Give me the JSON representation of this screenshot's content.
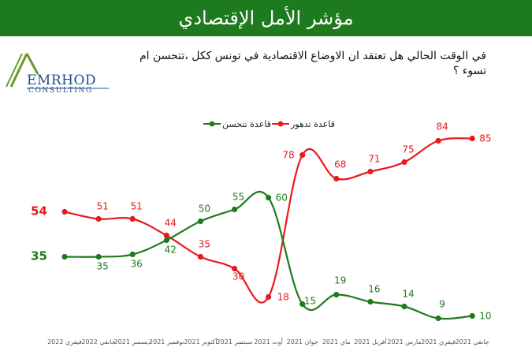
{
  "header": {
    "title": "مؤشر الأمل الإقتصادي",
    "question": "في الوقت الحالي هل تعتقد ان الاوضاع الاقتصادية في تونس ككل ،تتحسن ام تسوء ؟"
  },
  "logo": {
    "name": "EMRHOD",
    "sub": "CONSULTING"
  },
  "colors": {
    "brand_green": "#1e7a1e",
    "improve": "#1e7a1e",
    "worsen": "#e8191e"
  },
  "chart_data": {
    "type": "line",
    "categories": [
      "فيفري 2022",
      "جانفي 2022",
      "ديسمبر 2021",
      "نوفمبر 2021",
      "أكتوبر 2021",
      "سبتمبر 2021",
      "أوت 2021",
      "جوان 2021",
      "ماي 2021",
      "أفريل 2021",
      "مارس 2021",
      "فيفري 2021",
      "جانفي 2021"
    ],
    "series": [
      {
        "name": "قاعدة تدهور",
        "color": "#e8191e",
        "values": [
          54,
          51,
          51,
          44,
          35,
          30,
          18,
          78,
          68,
          71,
          75,
          84,
          85
        ]
      },
      {
        "name": "قاعدة تتحسن",
        "color": "#1e7a1e",
        "values": [
          35,
          35,
          36,
          42,
          50,
          55,
          60,
          15,
          19,
          16,
          14,
          9,
          10
        ]
      }
    ],
    "legend_position": "top-center",
    "grid": false
  }
}
